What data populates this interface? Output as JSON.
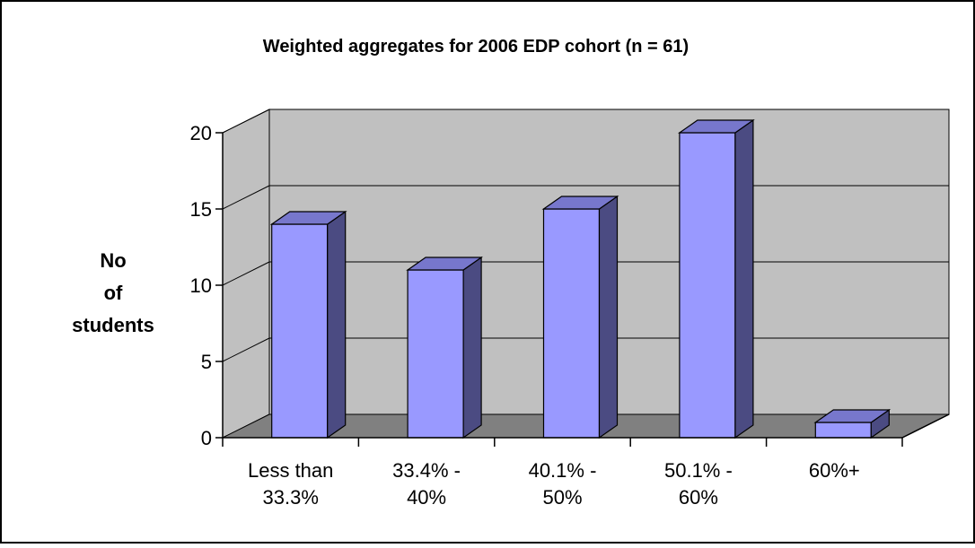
{
  "chart_data": {
    "type": "bar",
    "title": "Weighted aggregates for 2006 EDP cohort (n = 61)",
    "ylabel": [
      "No",
      "of",
      "students"
    ],
    "xlabel": "",
    "categories": [
      [
        "Less than",
        "33.3%"
      ],
      [
        "33.4% -",
        "40%"
      ],
      [
        "40.1% -",
        "50%"
      ],
      [
        "50.1% -",
        "60%"
      ],
      [
        "60%+"
      ]
    ],
    "values": [
      14,
      11,
      15,
      20,
      1
    ],
    "ylim": [
      0,
      20
    ],
    "yticks": [
      "0",
      "5",
      "10",
      "15",
      "20"
    ],
    "grid": true,
    "legend": "none",
    "style": "3d-column"
  },
  "colors": {
    "bar_front": "#9999FF",
    "bar_side": "#4B4B82",
    "bar_top": "#7777CC",
    "back_wall": "#C0C0C0",
    "floor": "#808080",
    "gridline": "#000000",
    "outline": "#000000"
  }
}
